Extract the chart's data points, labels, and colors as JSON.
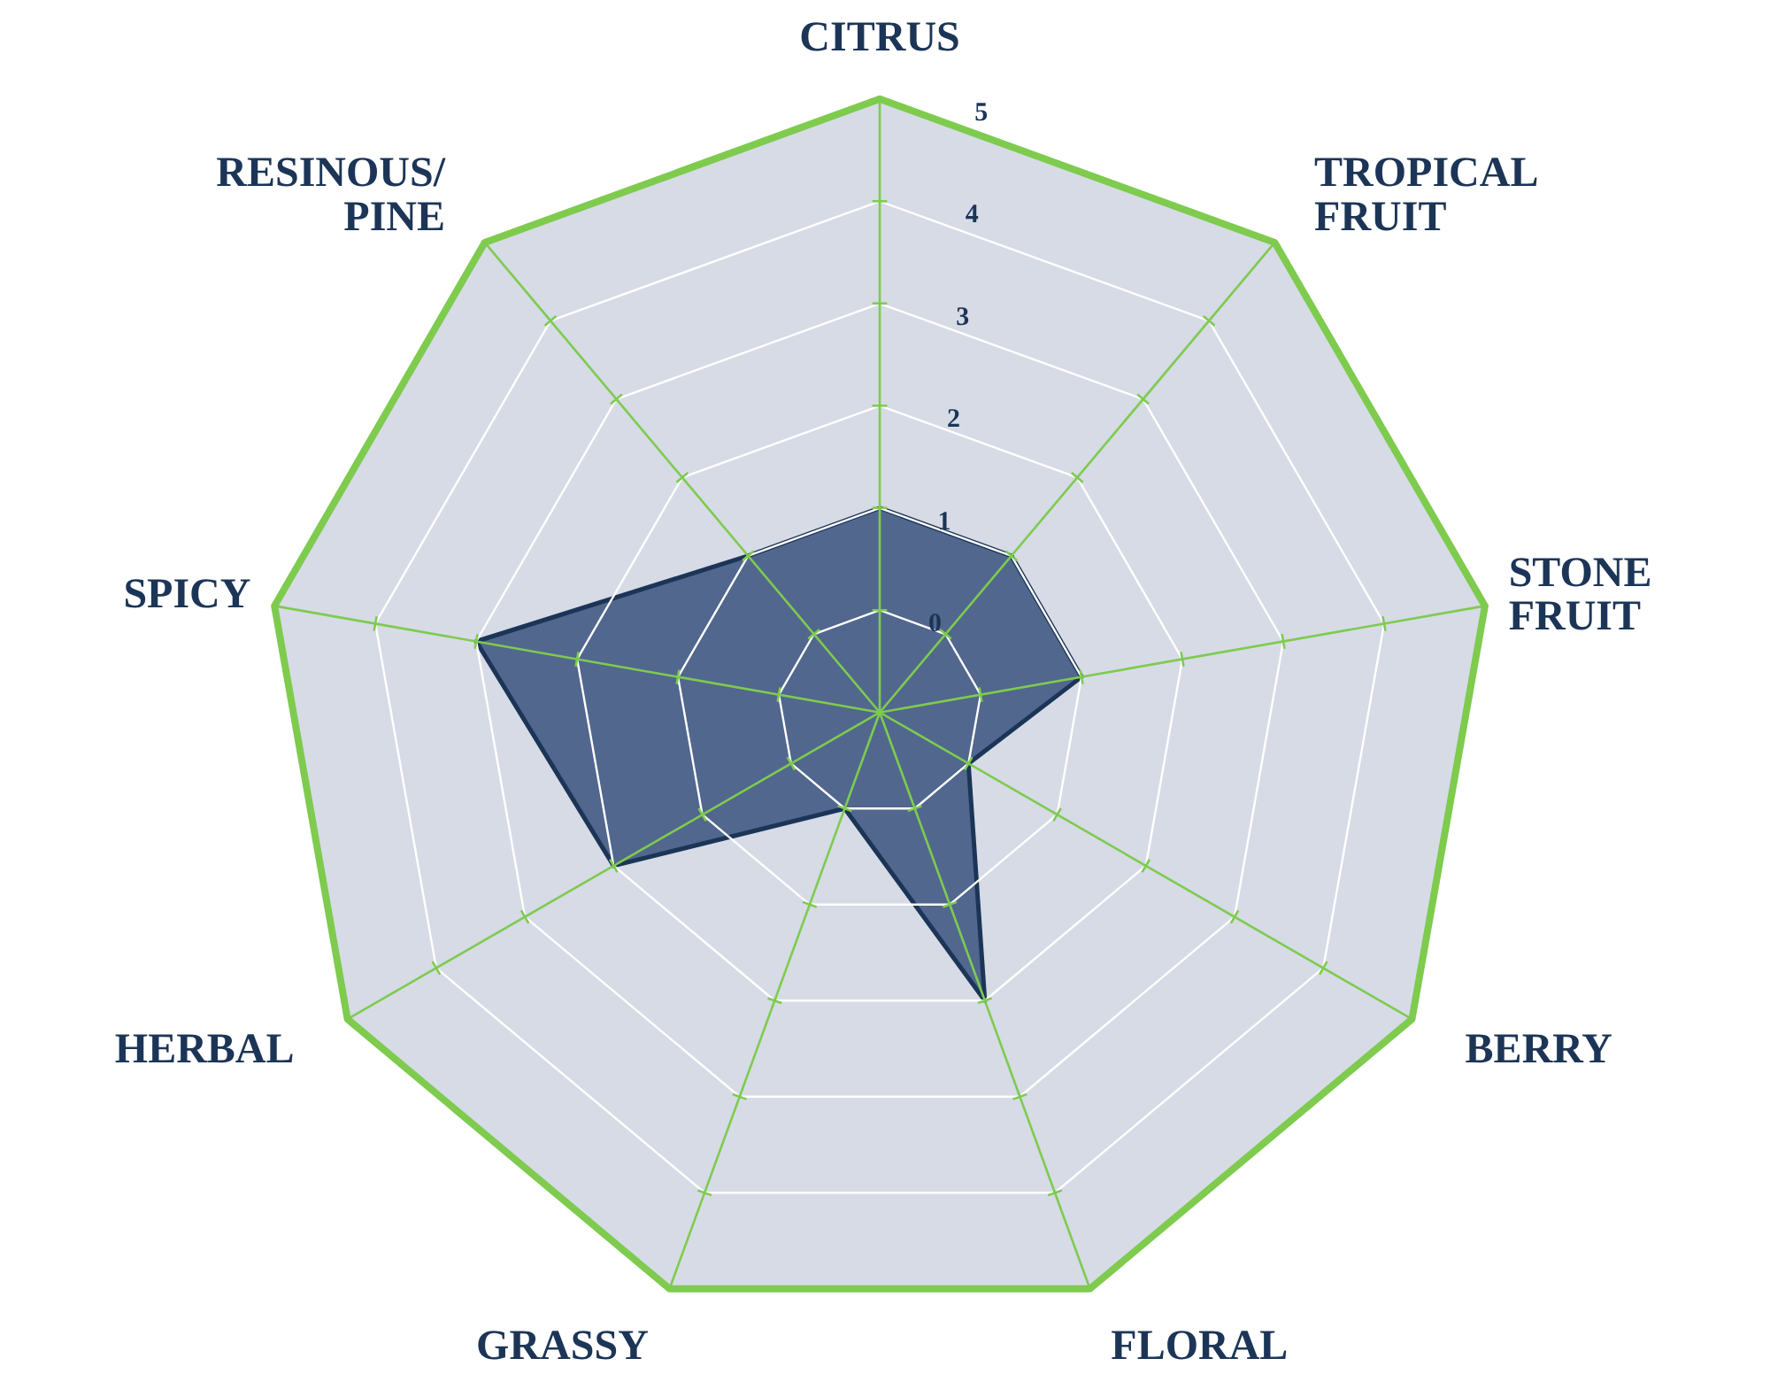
{
  "chart_data": {
    "type": "radar",
    "categories": [
      "CITRUS",
      "TROPICAL FRUIT",
      "STONE FRUIT",
      "BERRY",
      "FLORAL",
      "GRASSY",
      "HERBAL",
      "SPICY",
      "RESINOUS/ PINE"
    ],
    "series": [
      {
        "color": "#4a6189",
        "values": [
          1,
          1,
          1,
          0,
          2,
          0,
          2,
          3,
          1
        ]
      }
    ],
    "ylim": [
      -1,
      5
    ],
    "yticks": [
      0,
      1,
      2,
      3,
      4,
      5
    ],
    "grid": true
  }
}
